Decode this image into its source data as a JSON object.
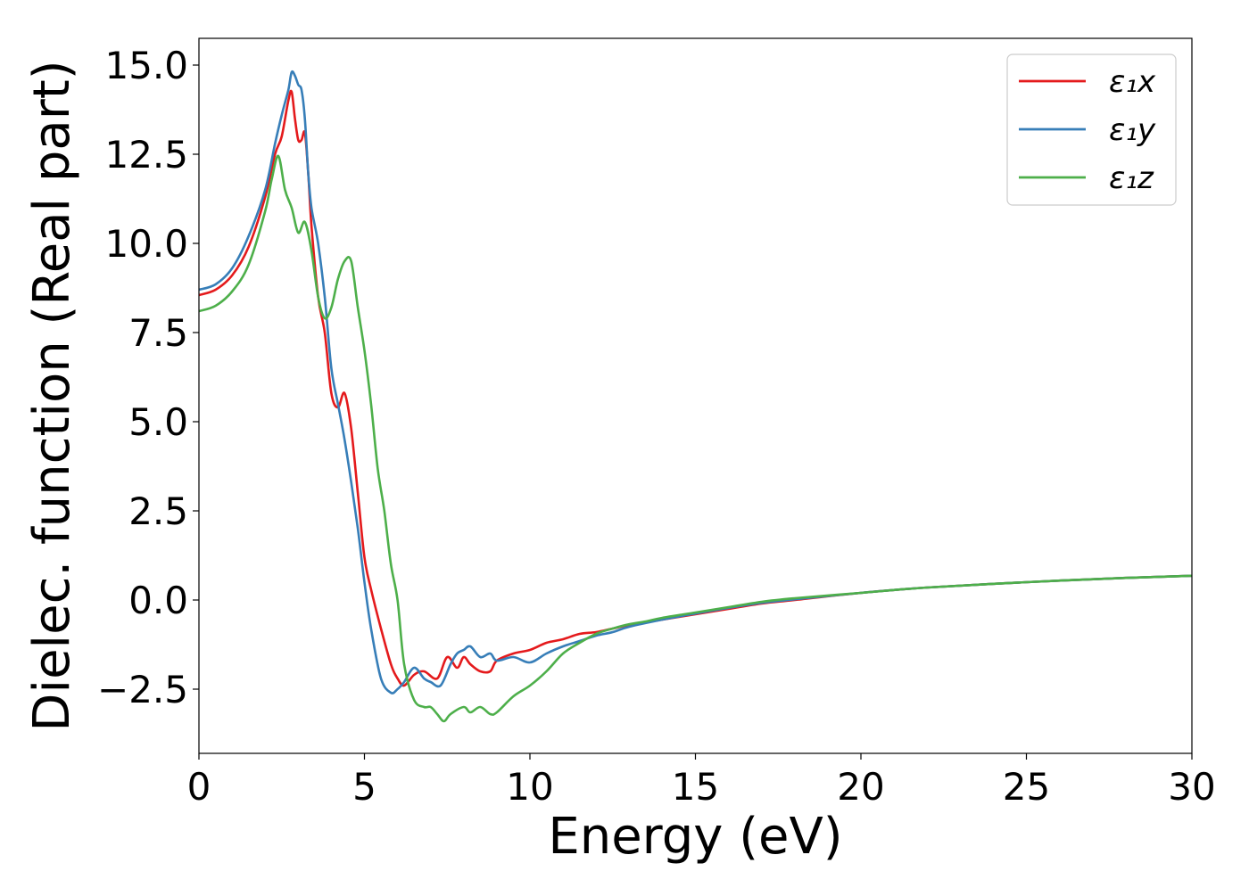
{
  "chart_data": {
    "type": "line",
    "xlabel": "Energy (eV)",
    "ylabel": "Dielec. function (Real part)",
    "xlim": [
      0,
      30
    ],
    "ylim": [
      -4.3,
      15.75
    ],
    "x_ticks": [
      0,
      5,
      10,
      15,
      20,
      25,
      30
    ],
    "x_tick_labels": [
      "0",
      "5",
      "10",
      "15",
      "20",
      "25",
      "30"
    ],
    "y_ticks": [
      -2.5,
      0.0,
      2.5,
      5.0,
      7.5,
      10.0,
      12.5,
      15.0
    ],
    "y_tick_labels": [
      "−2.5",
      "0.0",
      "2.5",
      "5.0",
      "7.5",
      "10.0",
      "12.5",
      "15.0"
    ],
    "grid": false,
    "legend_position": "top-right",
    "series": [
      {
        "name": "ε₁x",
        "color": "#e41a1c",
        "x": [
          0,
          0.5,
          1,
          1.5,
          2,
          2.3,
          2.5,
          2.7,
          2.8,
          2.9,
          3.0,
          3.1,
          3.2,
          3.3,
          3.4,
          3.6,
          3.8,
          4.0,
          4.2,
          4.4,
          4.6,
          4.8,
          5.0,
          5.2,
          5.5,
          5.8,
          6.0,
          6.2,
          6.5,
          6.8,
          7.2,
          7.5,
          7.8,
          8.0,
          8.2,
          8.5,
          8.8,
          9.0,
          9.5,
          10.0,
          10.5,
          11.0,
          11.5,
          12.0,
          12.5,
          13.0,
          14.0,
          15.0,
          16.0,
          17.0,
          18.0,
          20.0,
          22.0,
          25.0,
          28.0,
          30.0
        ],
        "y": [
          8.55,
          8.7,
          9.1,
          9.9,
          11.3,
          12.5,
          13.0,
          14.0,
          14.25,
          13.5,
          12.9,
          12.9,
          13.1,
          12.0,
          10.5,
          8.5,
          7.5,
          5.8,
          5.4,
          5.8,
          4.8,
          3.0,
          1.2,
          0.3,
          -0.8,
          -1.8,
          -2.2,
          -2.4,
          -2.1,
          -2.0,
          -2.2,
          -1.6,
          -1.9,
          -1.6,
          -1.8,
          -2.0,
          -2.0,
          -1.7,
          -1.5,
          -1.4,
          -1.2,
          -1.1,
          -0.95,
          -0.9,
          -0.8,
          -0.7,
          -0.55,
          -0.4,
          -0.25,
          -0.1,
          0.0,
          0.2,
          0.35,
          0.5,
          0.62,
          0.68
        ]
      },
      {
        "name": "ε₁y",
        "color": "#377eb8",
        "x": [
          0,
          0.5,
          1,
          1.5,
          2,
          2.3,
          2.5,
          2.7,
          2.8,
          2.9,
          3.0,
          3.1,
          3.2,
          3.3,
          3.4,
          3.6,
          3.8,
          4.0,
          4.2,
          4.4,
          4.6,
          4.8,
          5.0,
          5.2,
          5.5,
          5.8,
          6.0,
          6.2,
          6.5,
          6.8,
          7.0,
          7.3,
          7.6,
          7.8,
          8.0,
          8.2,
          8.5,
          8.8,
          9.0,
          9.5,
          10.0,
          10.5,
          11.0,
          11.5,
          12.0,
          12.5,
          13.0,
          14.0,
          15.0,
          16.0,
          17.0,
          18.0,
          20.0,
          22.0,
          25.0,
          28.0,
          30.0
        ],
        "y": [
          8.7,
          8.85,
          9.3,
          10.2,
          11.5,
          12.8,
          13.6,
          14.3,
          14.8,
          14.7,
          14.45,
          14.3,
          13.5,
          12.0,
          11.0,
          10.0,
          8.5,
          6.5,
          5.5,
          4.5,
          3.3,
          2.0,
          0.5,
          -0.8,
          -2.2,
          -2.6,
          -2.5,
          -2.3,
          -1.9,
          -2.2,
          -2.3,
          -2.4,
          -1.8,
          -1.5,
          -1.4,
          -1.3,
          -1.6,
          -1.5,
          -1.7,
          -1.6,
          -1.75,
          -1.5,
          -1.3,
          -1.15,
          -1.0,
          -0.9,
          -0.75,
          -0.55,
          -0.38,
          -0.22,
          -0.08,
          0.02,
          0.2,
          0.35,
          0.5,
          0.62,
          0.68
        ]
      },
      {
        "name": "ε₁z",
        "color": "#4daf4a",
        "x": [
          0,
          0.5,
          1,
          1.5,
          2,
          2.2,
          2.4,
          2.6,
          2.8,
          3.0,
          3.2,
          3.4,
          3.6,
          3.8,
          4.0,
          4.2,
          4.4,
          4.6,
          4.8,
          5.0,
          5.2,
          5.4,
          5.6,
          5.8,
          6.0,
          6.2,
          6.5,
          6.8,
          7.0,
          7.2,
          7.4,
          7.6,
          8.0,
          8.2,
          8.5,
          8.8,
          9.0,
          9.5,
          10.0,
          10.5,
          11.0,
          11.5,
          12.0,
          12.5,
          13.0,
          13.5,
          14.0,
          15.0,
          16.0,
          17.0,
          18.0,
          20.0,
          22.0,
          25.0,
          28.0,
          30.0
        ],
        "y": [
          8.1,
          8.25,
          8.65,
          9.4,
          10.9,
          11.8,
          12.45,
          11.5,
          11.0,
          10.3,
          10.6,
          9.8,
          8.5,
          7.9,
          8.2,
          9.0,
          9.5,
          9.5,
          8.2,
          7.0,
          5.5,
          3.7,
          2.5,
          1.0,
          0.0,
          -1.8,
          -2.8,
          -3.0,
          -3.0,
          -3.2,
          -3.4,
          -3.2,
          -3.0,
          -3.15,
          -3.0,
          -3.2,
          -3.15,
          -2.7,
          -2.4,
          -2.0,
          -1.5,
          -1.2,
          -0.95,
          -0.8,
          -0.68,
          -0.6,
          -0.5,
          -0.35,
          -0.2,
          -0.05,
          0.05,
          0.2,
          0.35,
          0.5,
          0.62,
          0.68
        ]
      }
    ]
  }
}
